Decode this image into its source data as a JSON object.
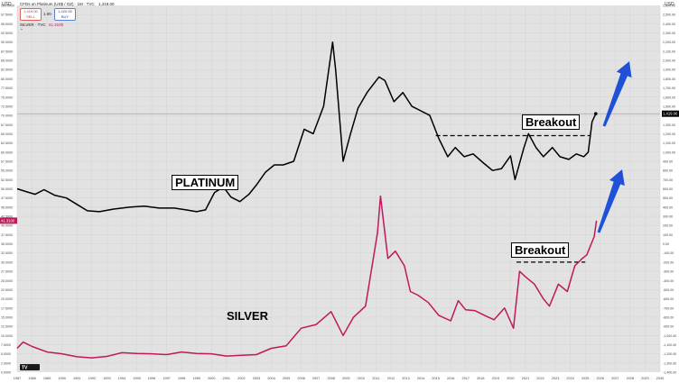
{
  "header": {
    "symbol": "CFDs on Platinum (US$ / OZ) · 1M · TVC",
    "price": "1,419.00",
    "sell_price": "1,419.00",
    "sell_label": "SELL",
    "spread": "1.00",
    "buy_price": "1,420.00",
    "buy_label": "BUY",
    "silver_legend": "SILVER · TVC",
    "silver_value": "41.3100"
  },
  "axes": {
    "left_currency": "USD",
    "right_currency": "USD",
    "left_ticks": [
      "100.0000",
      "97.5000",
      "95.0000",
      "92.5000",
      "90.0000",
      "87.5000",
      "85.0000",
      "82.5000",
      "80.0000",
      "77.5000",
      "75.0000",
      "72.5000",
      "70.0000",
      "67.5000",
      "65.0000",
      "62.5000",
      "60.0000",
      "57.5000",
      "55.0000",
      "52.5000",
      "50.0000",
      "47.5000",
      "45.0000",
      "42.5000",
      "40.0000",
      "37.5000",
      "35.0000",
      "32.5000",
      "30.0000",
      "27.5000",
      "25.0000",
      "22.5000",
      "20.0000",
      "17.5000",
      "15.0000",
      "12.5000",
      "10.0000",
      "7.5000",
      "5.0000",
      "2.5000",
      "0.0000"
    ],
    "right_ticks": [
      "2,600.00",
      "2,500.00",
      "2,400.00",
      "2,300.00",
      "2,200.00",
      "2,100.00",
      "2,000.00",
      "1,900.00",
      "1,800.00",
      "1,700.00",
      "1,600.00",
      "1,500.00",
      "1,400.00",
      "1,300.00",
      "1,200.00",
      "1,100.00",
      "1,000.00",
      "900.00",
      "800.00",
      "700.00",
      "600.00",
      "500.00",
      "400.00",
      "300.00",
      "200.00",
      "100.00",
      "0.00",
      "-100.00",
      "-200.00",
      "-300.00",
      "-400.00",
      "-500.00",
      "-600.00",
      "-700.00",
      "-800.00",
      "-900.00",
      "-1,000.00",
      "-1,100.00",
      "-1,200.00",
      "-1,300.00",
      "-1,400.00"
    ],
    "years": [
      "1987",
      "1988",
      "1989",
      "1990",
      "1991",
      "1992",
      "1993",
      "1994",
      "1995",
      "1996",
      "1997",
      "1998",
      "1999",
      "2000",
      "2001",
      "2002",
      "2003",
      "2004",
      "2005",
      "2006",
      "2007",
      "2008",
      "2009",
      "2010",
      "2011",
      "2012",
      "2013",
      "2014",
      "2015",
      "2016",
      "2017",
      "2018",
      "2019",
      "2020",
      "2021",
      "2022",
      "2023",
      "2024",
      "2025",
      "2026",
      "2027",
      "2028",
      "2029",
      "2030"
    ],
    "current_platinum_label": "1,419.00",
    "current_silver_label": "41.3100"
  },
  "annotations": {
    "platinum_label": "PLATINUM",
    "silver_label": "SILVER",
    "breakout_platinum": "Breakout",
    "breakout_silver": "Breakout"
  },
  "colors": {
    "platinum": "#000000",
    "silver": "#c0185c",
    "arrow": "#1f50d8",
    "plot_bg": "#e2e2e2"
  },
  "chart_data": {
    "type": "line",
    "x_range": [
      1987,
      2030
    ],
    "series": [
      {
        "name": "PLATINUM",
        "axis": "right",
        "points": [
          [
            1987,
            600
          ],
          [
            1987.6,
            570
          ],
          [
            1988.2,
            540
          ],
          [
            1988.8,
            590
          ],
          [
            1989.5,
            530
          ],
          [
            1990.3,
            500
          ],
          [
            1991,
            430
          ],
          [
            1991.7,
            360
          ],
          [
            1992.5,
            350
          ],
          [
            1993.5,
            380
          ],
          [
            1994.5,
            400
          ],
          [
            1995.5,
            410
          ],
          [
            1996.5,
            390
          ],
          [
            1997.5,
            390
          ],
          [
            1998.3,
            370
          ],
          [
            1999,
            350
          ],
          [
            1999.6,
            370
          ],
          [
            2000.2,
            560
          ],
          [
            2000.8,
            620
          ],
          [
            2001.3,
            510
          ],
          [
            2001.9,
            460
          ],
          [
            2002.5,
            540
          ],
          [
            2003,
            640
          ],
          [
            2003.6,
            780
          ],
          [
            2004.2,
            860
          ],
          [
            2004.8,
            860
          ],
          [
            2005.5,
            900
          ],
          [
            2006.2,
            1250
          ],
          [
            2006.8,
            1200
          ],
          [
            2007.5,
            1500
          ],
          [
            2008.1,
            2200
          ],
          [
            2008.3,
            1900
          ],
          [
            2008.8,
            900
          ],
          [
            2009.3,
            1200
          ],
          [
            2009.8,
            1480
          ],
          [
            2010.4,
            1650
          ],
          [
            2011.2,
            1820
          ],
          [
            2011.6,
            1780
          ],
          [
            2012.2,
            1550
          ],
          [
            2012.8,
            1650
          ],
          [
            2013.4,
            1500
          ],
          [
            2014,
            1450
          ],
          [
            2014.6,
            1400
          ],
          [
            2015.2,
            1150
          ],
          [
            2015.8,
            950
          ],
          [
            2016.3,
            1050
          ],
          [
            2016.9,
            950
          ],
          [
            2017.5,
            980
          ],
          [
            2018.2,
            880
          ],
          [
            2018.8,
            800
          ],
          [
            2019.4,
            820
          ],
          [
            2020,
            960
          ],
          [
            2020.3,
            700
          ],
          [
            2020.9,
            1050
          ],
          [
            2021.2,
            1200
          ],
          [
            2021.7,
            1050
          ],
          [
            2022.2,
            950
          ],
          [
            2022.8,
            1050
          ],
          [
            2023.3,
            950
          ],
          [
            2023.9,
            920
          ],
          [
            2024.4,
            980
          ],
          [
            2024.9,
            950
          ],
          [
            2025.2,
            1000
          ],
          [
            2025.45,
            1330
          ],
          [
            2025.7,
            1419
          ]
        ]
      },
      {
        "name": "SILVER",
        "axis": "left",
        "points": [
          [
            1987,
            6.5
          ],
          [
            1987.4,
            8.2
          ],
          [
            1988,
            7
          ],
          [
            1989,
            5.5
          ],
          [
            1990,
            5
          ],
          [
            1991,
            4.2
          ],
          [
            1992,
            3.9
          ],
          [
            1993,
            4.3
          ],
          [
            1994,
            5.3
          ],
          [
            1995,
            5.1
          ],
          [
            1996,
            5
          ],
          [
            1997,
            4.8
          ],
          [
            1998,
            5.5
          ],
          [
            1999,
            5.1
          ],
          [
            2000,
            5
          ],
          [
            2001,
            4.4
          ],
          [
            2002,
            4.6
          ],
          [
            2003,
            4.8
          ],
          [
            2004,
            6.5
          ],
          [
            2005,
            7.2
          ],
          [
            2006,
            12
          ],
          [
            2007,
            13
          ],
          [
            2008,
            16.5
          ],
          [
            2008.8,
            10
          ],
          [
            2009.5,
            15
          ],
          [
            2010.3,
            18
          ],
          [
            2011.1,
            38
          ],
          [
            2011.3,
            48
          ],
          [
            2011.8,
            31
          ],
          [
            2012.3,
            33
          ],
          [
            2012.9,
            29
          ],
          [
            2013.3,
            22
          ],
          [
            2013.8,
            21
          ],
          [
            2014.5,
            19
          ],
          [
            2015.2,
            15.5
          ],
          [
            2016,
            14
          ],
          [
            2016.5,
            19.5
          ],
          [
            2017,
            17
          ],
          [
            2017.6,
            16.8
          ],
          [
            2018.4,
            15.2
          ],
          [
            2018.9,
            14.3
          ],
          [
            2019.6,
            17.5
          ],
          [
            2020.2,
            12
          ],
          [
            2020.6,
            27.5
          ],
          [
            2021,
            26
          ],
          [
            2021.6,
            24
          ],
          [
            2022.2,
            20
          ],
          [
            2022.6,
            18
          ],
          [
            2023.2,
            24
          ],
          [
            2023.8,
            22
          ],
          [
            2024.3,
            29
          ],
          [
            2024.8,
            31
          ],
          [
            2025.1,
            32
          ],
          [
            2025.6,
            37
          ],
          [
            2025.75,
            41.31
          ]
        ]
      }
    ],
    "right_axis_ylim": [
      -1400,
      2600
    ],
    "left_axis_ylim": [
      0,
      100
    ],
    "platinum_breakout_level": 1180,
    "platinum_breakout_from": 2015,
    "silver_breakout_level": 30,
    "silver_breakout_from": 2020.4
  }
}
